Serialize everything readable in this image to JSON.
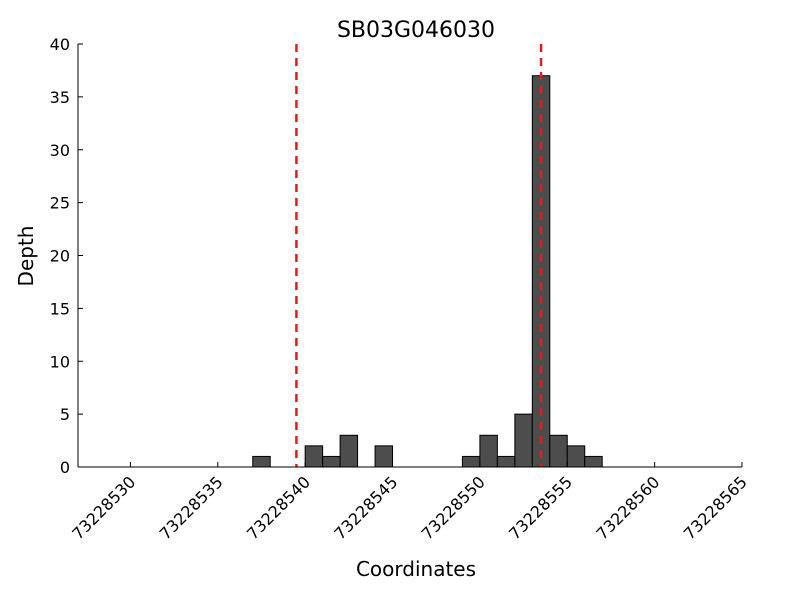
{
  "chart_data": {
    "type": "bar",
    "title": "SB03G046030",
    "xlabel": "Coordinates",
    "ylabel": "Depth",
    "xlim": [
      73228527,
      73228565
    ],
    "ylim": [
      0,
      40
    ],
    "xticks": [
      73228530,
      73228535,
      73228540,
      73228545,
      73228550,
      73228555,
      73228560,
      73228565
    ],
    "yticks": [
      0,
      5,
      10,
      15,
      20,
      25,
      30,
      35,
      40
    ],
    "bin_width": 1,
    "bars": [
      {
        "x": 73228537,
        "y": 1
      },
      {
        "x": 73228540,
        "y": 2
      },
      {
        "x": 73228541,
        "y": 1
      },
      {
        "x": 73228542,
        "y": 3
      },
      {
        "x": 73228544,
        "y": 2
      },
      {
        "x": 73228549,
        "y": 1
      },
      {
        "x": 73228550,
        "y": 3
      },
      {
        "x": 73228551,
        "y": 1
      },
      {
        "x": 73228552,
        "y": 5
      },
      {
        "x": 73228553,
        "y": 37
      },
      {
        "x": 73228554,
        "y": 3
      },
      {
        "x": 73228555,
        "y": 2
      },
      {
        "x": 73228556,
        "y": 1
      }
    ],
    "vlines": [
      73228539.5,
      73228553.5
    ],
    "colors": {
      "bar_fill": "#4d4d4d",
      "bar_edge": "#000000",
      "vline": "#e41a1c"
    },
    "grid": false
  }
}
